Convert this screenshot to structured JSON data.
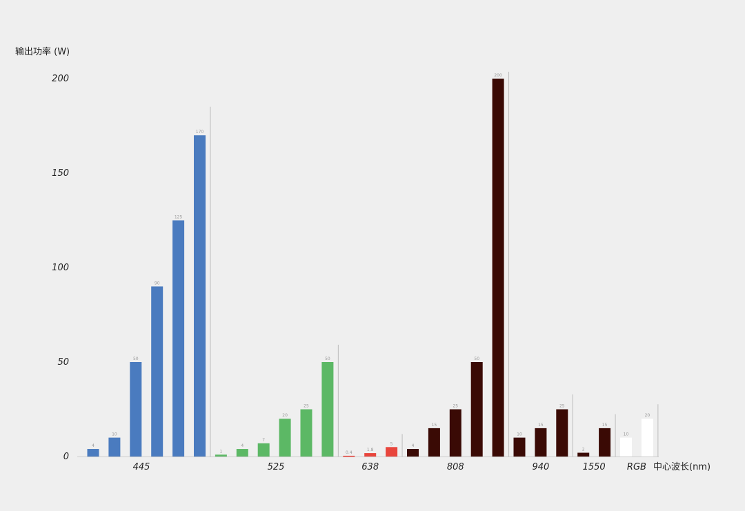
{
  "chart_data": {
    "type": "bar",
    "title": "",
    "ylabel": "输出功率 (W)",
    "xlabel": "中心波长(nm)",
    "ylim": [
      0,
      200
    ],
    "yticks": [
      0,
      50,
      100,
      150,
      200
    ],
    "grid": false,
    "groups": [
      {
        "category": "445",
        "color": "#4a7bbf",
        "values": [
          4,
          10,
          50,
          90,
          125,
          170
        ]
      },
      {
        "category": "525",
        "color": "#5cb865",
        "values": [
          1,
          4,
          7,
          20,
          25,
          50
        ]
      },
      {
        "category": "638",
        "color": "#e8453c",
        "values": [
          0.4,
          1.8,
          5
        ]
      },
      {
        "category": "808",
        "color": "#3a0a05",
        "values": [
          4,
          15,
          25,
          50,
          200
        ]
      },
      {
        "category": "940",
        "color": "#3a0a05",
        "values": [
          10,
          15,
          25
        ]
      },
      {
        "category": "1550",
        "color": "#3a0a05",
        "values": [
          2,
          15
        ]
      },
      {
        "category": "RGB",
        "color": "#ffffff",
        "values": [
          10,
          20
        ]
      }
    ]
  }
}
